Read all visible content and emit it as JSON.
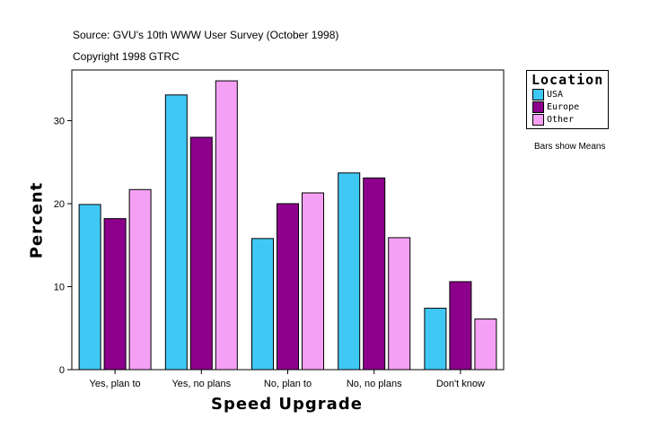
{
  "chart_data": {
    "type": "bar",
    "title": "Source: GVU's 10th WWW User Survey (October 1998)",
    "subtitle": "Copyright 1998 GTRC",
    "xlabel": "Speed Upgrade",
    "ylabel": "Percent",
    "ylim": [
      0,
      36
    ],
    "yticks": [
      0,
      10,
      20,
      30
    ],
    "grid": false,
    "legend_title": "Location",
    "legend_placement": "right",
    "note": "Bars show Means",
    "categories": [
      "Yes, plan to",
      "Yes, no plans",
      "No, plan to",
      "No, no plans",
      "Don't know"
    ],
    "series": [
      {
        "name": "USA",
        "color": "#40c8f4",
        "values": [
          19.9,
          33.1,
          15.8,
          23.7,
          7.4
        ]
      },
      {
        "name": "Europe",
        "color": "#8c008c",
        "values": [
          18.2,
          28.0,
          20.0,
          23.1,
          10.6
        ]
      },
      {
        "name": "Other",
        "color": "#f4a0f4",
        "values": [
          21.7,
          34.8,
          21.3,
          15.9,
          6.1
        ]
      }
    ]
  }
}
